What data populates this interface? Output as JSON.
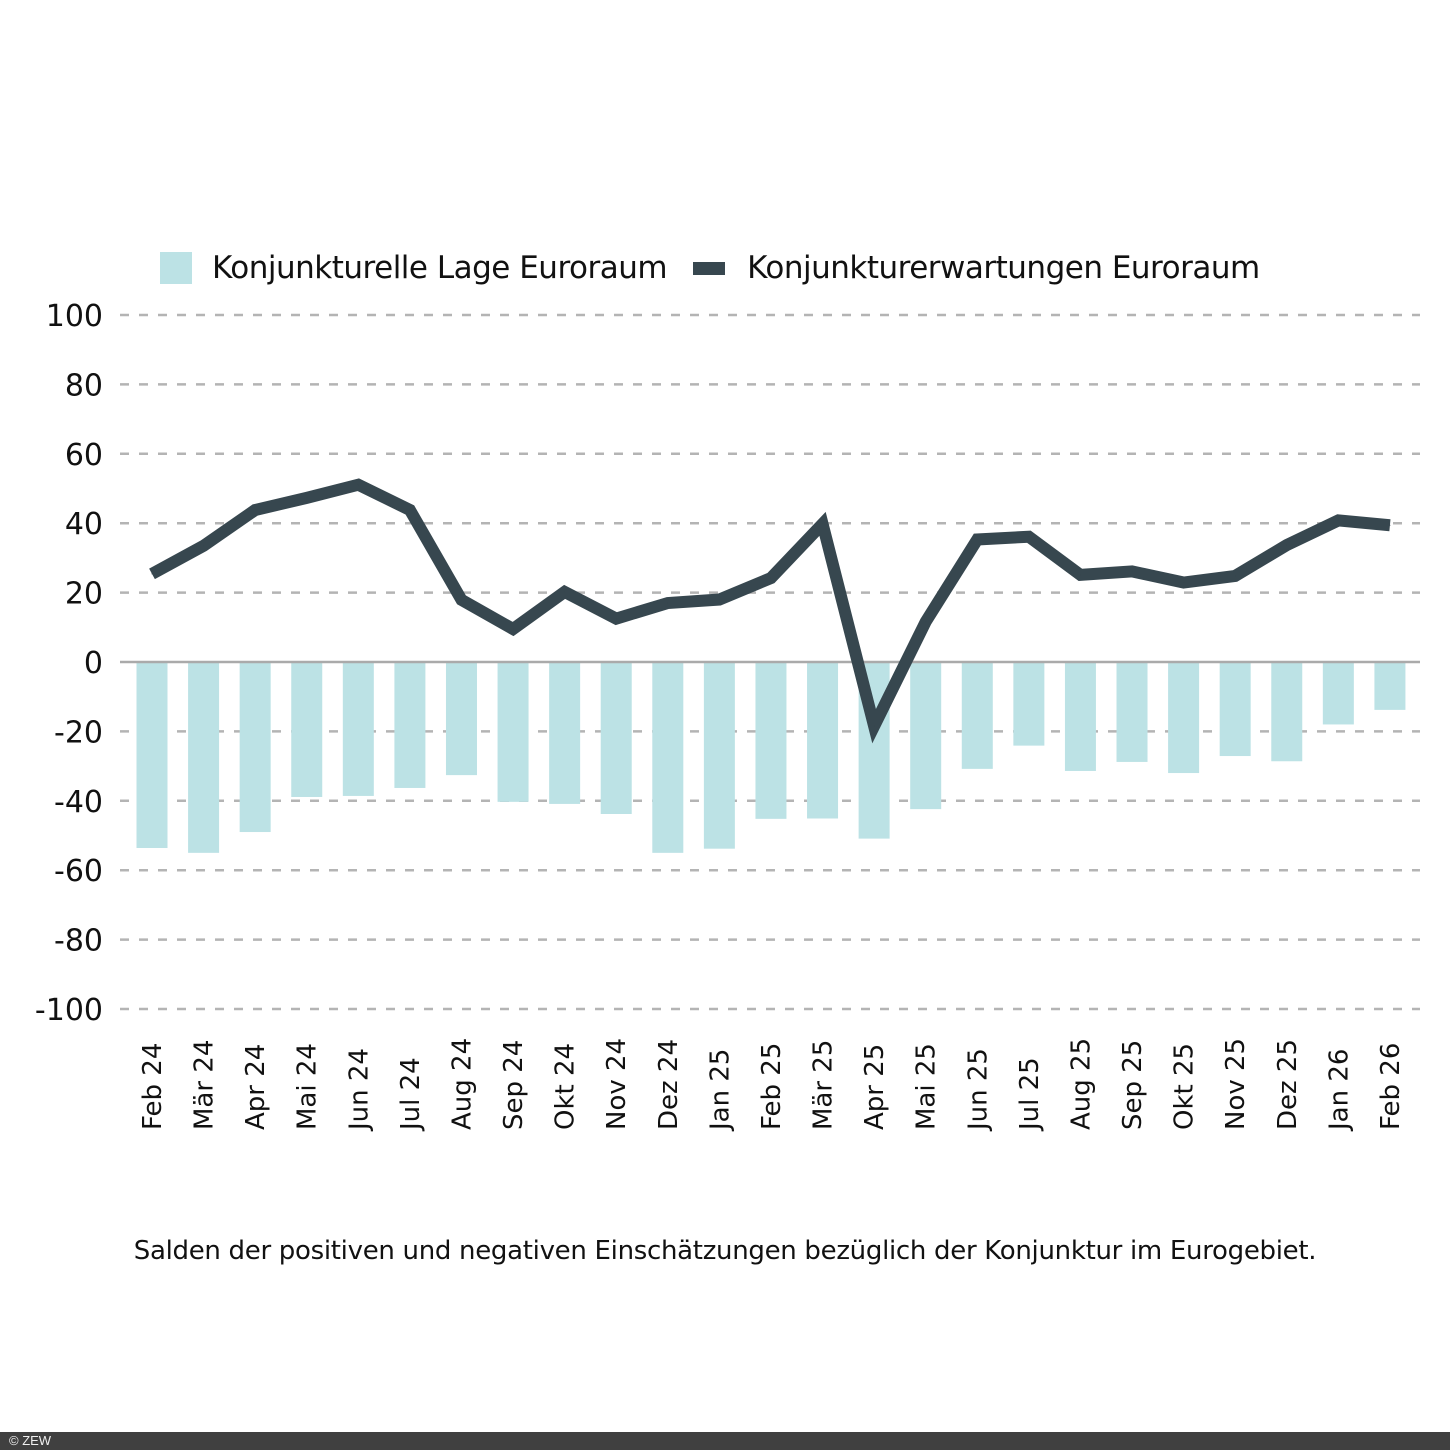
{
  "chart_data": {
    "type": "bar+line",
    "title": "",
    "xlabel": "",
    "ylabel": "",
    "ylim": [
      -100,
      100
    ],
    "yticks": [
      100,
      80,
      60,
      40,
      20,
      0,
      -20,
      -40,
      -60,
      -80,
      -100
    ],
    "grid": true,
    "legend_position": "top",
    "categories": [
      "Feb 24",
      "Mär 24",
      "Apr 24",
      "Mai 24",
      "Jun 24",
      "Jul 24",
      "Aug 24",
      "Sep 24",
      "Okt 24",
      "Nov 24",
      "Dez 24",
      "Jan 25",
      "Feb 25",
      "Mär 25",
      "Apr 25",
      "Mai 25",
      "Jun 25",
      "Jul 25",
      "Aug 25",
      "Sep 25",
      "Okt 25",
      "Nov 25",
      "Dez 25",
      "Jan 26",
      "Feb 26"
    ],
    "series": [
      {
        "name": "Konjunkturelle Lage Euroraum",
        "type": "bar",
        "color": "#bce2e5",
        "values": [
          -53.6,
          -55.0,
          -49.0,
          -38.9,
          -38.6,
          -36.3,
          -32.6,
          -40.3,
          -40.9,
          -43.8,
          -55.0,
          -53.8,
          -45.2,
          -45.1,
          -50.9,
          -42.4,
          -30.8,
          -24.1,
          -31.4,
          -28.8,
          -32.0,
          -27.1,
          -28.6,
          -18.0,
          -13.8
        ]
      },
      {
        "name": "Konjunkturerwartungen Euroraum",
        "type": "line",
        "color": "#37474f",
        "values": [
          25.4,
          33.5,
          43.8,
          47.3,
          51.1,
          43.8,
          17.9,
          9.5,
          20.2,
          12.5,
          17.0,
          18.0,
          24.2,
          39.8,
          -18.5,
          11.6,
          35.3,
          36.1,
          25.1,
          26.1,
          22.9,
          24.8,
          33.7,
          40.8,
          39.4
        ]
      }
    ],
    "caption": "Salden der positiven und negativen Einschätzungen bezüglich der Konjunktur  im Eurogebiet."
  },
  "legend": {
    "bar_label": "Konjunkturelle Lage Euroraum",
    "line_label": "Konjunkturerwartungen Euroraum"
  },
  "caption": "Salden der positiven und negativen Einschätzungen bezüglich der Konjunktur  im Eurogebiet.",
  "footer": {
    "copyright": "© ZEW"
  },
  "colors": {
    "bar": "#bce2e5",
    "line": "#37474f",
    "grid": "#b4b4b4",
    "footer_bg": "#404040"
  }
}
